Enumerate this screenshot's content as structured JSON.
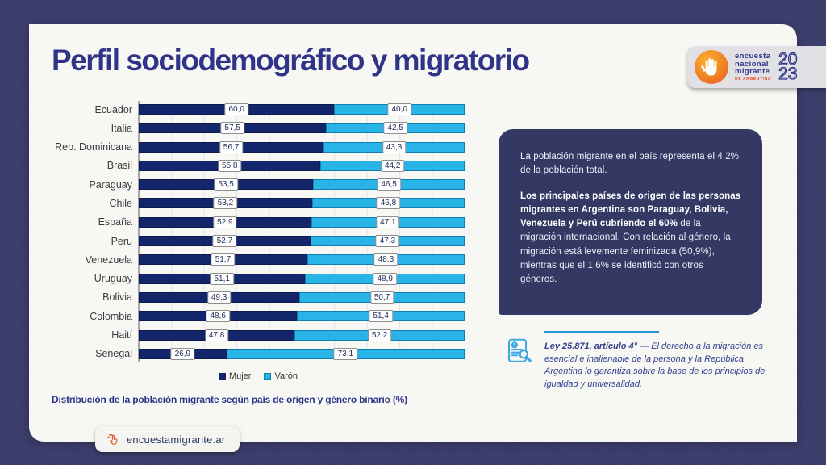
{
  "page": {
    "title": "Perfil sociodemográfico y migratorio"
  },
  "logo": {
    "line1": "encuesta",
    "line2": "nacional",
    "line3": "migrante",
    "subtitle": "DE ARGENTINA",
    "year_top": "20",
    "year_bottom": "23",
    "icon": "hand-icon"
  },
  "chart_data": {
    "type": "bar",
    "orientation": "horizontal",
    "stacked": true,
    "unit": "%",
    "title": "Distribución de la población migrante según país de origen y género binario (%)",
    "categories": [
      "Ecuador",
      "Italia",
      "Rep. Dominicana",
      "Brasil",
      "Paraguay",
      "Chile",
      "España",
      "Peru",
      "Venezuela",
      "Uruguay",
      "Bolivia",
      "Colombia",
      "Haití",
      "Senegal"
    ],
    "series": [
      {
        "name": "Mujer",
        "color": "#13266b",
        "values": [
          60.0,
          57.5,
          56.7,
          55.8,
          53.5,
          53.2,
          52.9,
          52.7,
          51.7,
          51.1,
          49.3,
          48.6,
          47.8,
          26.9
        ]
      },
      {
        "name": "Varón",
        "color": "#29b4e8",
        "values": [
          40.0,
          42.5,
          43.3,
          44.2,
          46.5,
          46.8,
          47.1,
          47.3,
          48.3,
          48.9,
          50.7,
          51.4,
          52.2,
          73.1
        ]
      }
    ],
    "xlim": [
      0,
      100
    ],
    "grid": "faint-vertical",
    "legend_position": "bottom-center",
    "value_label_format": "comma-decimal"
  },
  "caption": "Distribución de la población migrante según país de origen y género binario  (%)",
  "info_box": {
    "p1": "La población migrante en el país representa el 4,2% de la población total.",
    "p2_bold": "Los principales países de origen de las personas migrantes en Argentina son Paraguay, Bolivia, Venezuela y Perú cubriendo el 60%",
    "p2_rest": " de la migración internacional. Con relación al género, la migración está levemente feminizada (50,9%), mientras que el 1,6% se identificó con otros géneros."
  },
  "law_note": {
    "title": "Ley 25.871, artículo 4°",
    "separator": " — ",
    "body": "El derecho a la migración es esencial e inalienable de la persona y la República Argentina lo garantiza sobre la base de los principios de igualdad y universalidad.",
    "icon": "document-magnifier-icon"
  },
  "footer": {
    "url": "encuestamigrante.ar",
    "icon": "click-hand-icon"
  },
  "colors": {
    "background": "#3a3c6a",
    "card": "#f7f7f4",
    "title_navy": "#2f3488",
    "bar_mujer": "#13266b",
    "bar_varon": "#29b4e8",
    "info_box_bg": "#333963",
    "accent_blue": "#2196d6",
    "accent_orange": "#e8542a",
    "logo_strip": "#e1e1e5"
  }
}
